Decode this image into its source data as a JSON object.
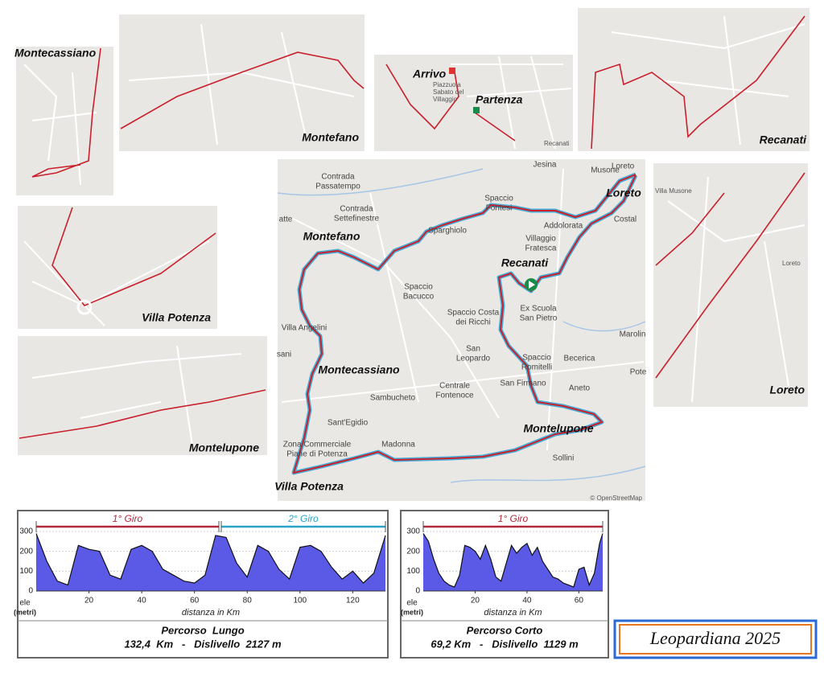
{
  "insets": [
    {
      "labels": [
        "Montecassiano"
      ]
    },
    {
      "labels": [
        "Montefano"
      ]
    },
    {
      "labels": [
        "Arrivo",
        "Piazzuola",
        "Sabato del",
        "Villaggio",
        "Partenza",
        "Recanati"
      ]
    },
    {
      "labels": [
        "Recanati"
      ]
    },
    {
      "labels": [
        "Villa Potenza"
      ]
    },
    {
      "labels": [
        "Montelupone"
      ]
    },
    {
      "labels": [
        "Villa Musone",
        "Loreto",
        "Loreto"
      ]
    }
  ],
  "main_map": {
    "labels": [
      "Loreto",
      "Jesina",
      "Musone",
      "Loreto",
      "Costal",
      "Contrada",
      "Passatempo",
      "Contrada",
      "Settefinestre",
      "atte",
      "Montefano",
      "Spaccio",
      "Fontesi",
      "Sparghiolo",
      "Addolorata",
      "Villaggio",
      "Fratesca",
      "Recanati",
      "Spaccio",
      "Bacucco",
      "Spaccio Costa",
      "dei Ricchi",
      "Ex Scuola",
      "San Pietro",
      "Villa Angelini",
      "Marolin",
      "San",
      "Leopardo",
      "Spaccio",
      "Romitelli",
      "Becerica",
      "sani",
      "Montecassiano",
      "Pote",
      "San Firmano",
      "Aneto",
      "Centrale",
      "Fontenoce",
      "Sambucheto",
      "Sant'Egidio",
      "Montelupone",
      "Zona Commerciale",
      "Piane di Potenza",
      "Madonna",
      "Sollini",
      "Villa Potenza"
    ],
    "attribution": "© OpenStreetMap"
  },
  "profiles": [
    {
      "laps": [
        "1° Giro",
        "2° Giro"
      ],
      "lap_colors": [
        "#b0283a",
        "#2aa3c9"
      ],
      "x": [
        0,
        4,
        8,
        12,
        16,
        20,
        24,
        28,
        32,
        36,
        40,
        44,
        48,
        52,
        56,
        60,
        64,
        68,
        72,
        76,
        80,
        84,
        88,
        92,
        96,
        100,
        104,
        108,
        112,
        116,
        120,
        124,
        128,
        132.4
      ],
      "values": [
        290,
        150,
        50,
        30,
        230,
        210,
        200,
        80,
        60,
        210,
        230,
        200,
        110,
        80,
        50,
        40,
        80,
        280,
        270,
        140,
        70,
        230,
        200,
        110,
        60,
        220,
        230,
        200,
        120,
        60,
        100,
        40,
        90,
        280
      ],
      "xlim": [
        0,
        132.4
      ],
      "ylim": [
        0,
        300
      ],
      "xticks": [
        20,
        40,
        60,
        80,
        100,
        120
      ],
      "yticks": [
        0,
        100,
        200,
        300
      ],
      "grid": true,
      "color": "#5a5ae6",
      "y_label": "ele",
      "y_unit": "(metri)",
      "x_label": "distanza in Km",
      "title": "Percorso  Lungo",
      "summary": "132,4  Km   -   Dislivello  2127 m"
    },
    {
      "laps": [
        "1° Giro"
      ],
      "lap_colors": [
        "#b0283a"
      ],
      "x": [
        0,
        2,
        4,
        6,
        8,
        10,
        12,
        14,
        16,
        18,
        20,
        22,
        24,
        26,
        28,
        30,
        32,
        34,
        36,
        38,
        40,
        42,
        44,
        46,
        48,
        50,
        52,
        54,
        56,
        58,
        60,
        62,
        64,
        66,
        68,
        69.2
      ],
      "values": [
        290,
        250,
        160,
        90,
        50,
        30,
        20,
        80,
        230,
        220,
        200,
        160,
        230,
        160,
        70,
        50,
        140,
        230,
        190,
        220,
        240,
        180,
        220,
        150,
        110,
        70,
        60,
        40,
        30,
        20,
        110,
        120,
        30,
        90,
        240,
        290
      ],
      "xlim": [
        0,
        69.2
      ],
      "ylim": [
        0,
        300
      ],
      "xticks": [
        20,
        40,
        60
      ],
      "yticks": [
        0,
        100,
        200,
        300
      ],
      "grid": true,
      "color": "#5a5ae6",
      "y_label": "ele",
      "y_unit": "(metri)",
      "x_label": "distanza in Km",
      "title": "Percorso Corto",
      "summary": "69,2 Km   -   Dislivello  1129 m"
    }
  ],
  "brand": "Leopardiana 2025"
}
